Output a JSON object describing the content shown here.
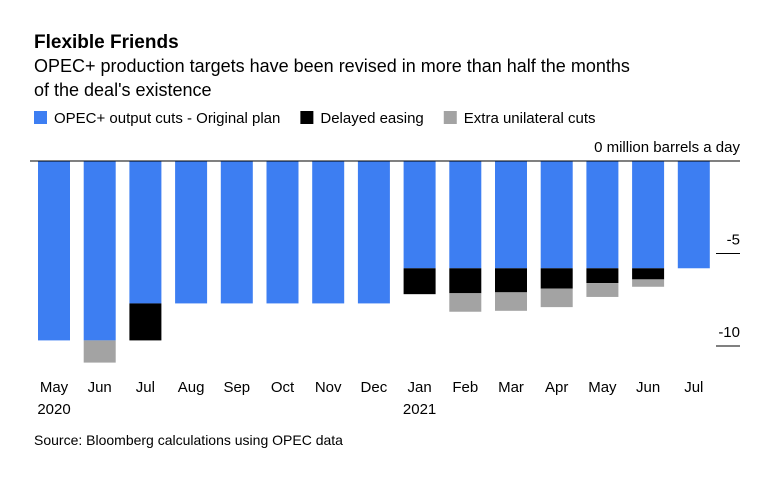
{
  "chart_data": {
    "type": "stacked_bar",
    "title": "Flexible Friends",
    "subtitle": "OPEC+ production targets have been revised in more than half the months of the deal's existence",
    "categories": [
      "May",
      "Jun",
      "Jul",
      "Aug",
      "Sep",
      "Oct",
      "Nov",
      "Dec",
      "Jan",
      "Feb",
      "Mar",
      "Apr",
      "May",
      "Jun",
      "Jul"
    ],
    "category_years": [
      "2020",
      null,
      null,
      null,
      null,
      null,
      null,
      null,
      "2021",
      null,
      null,
      null,
      null,
      null,
      null
    ],
    "series": [
      {
        "name": "OPEC+ output cuts - Original plan",
        "color": "#3d7ef2",
        "values": [
          -9.7,
          -9.7,
          -7.7,
          -7.7,
          -7.7,
          -7.7,
          -7.7,
          -7.7,
          -5.8,
          -5.8,
          -5.8,
          -5.8,
          -5.8,
          -5.8,
          -5.8
        ]
      },
      {
        "name": "Delayed easing",
        "color": "#000000",
        "values": [
          0,
          0,
          -2.0,
          0,
          0,
          0,
          0,
          0,
          -1.4,
          -1.35,
          -1.3,
          -1.1,
          -0.8,
          -0.6,
          0
        ]
      },
      {
        "name": "Extra unilateral cuts",
        "color": "#a3a3a3",
        "values": [
          0,
          -1.2,
          0,
          0,
          0,
          0,
          0,
          0,
          0,
          -1.0,
          -1.0,
          -1.0,
          -0.75,
          -0.4,
          0
        ]
      }
    ],
    "ylim": [
      -11.3,
      0
    ],
    "yticks": [
      {
        "value": 0,
        "label": "0 million barrels a day"
      },
      -5,
      -10
    ],
    "source": "Source: Bloomberg calculations using OPEC data"
  }
}
